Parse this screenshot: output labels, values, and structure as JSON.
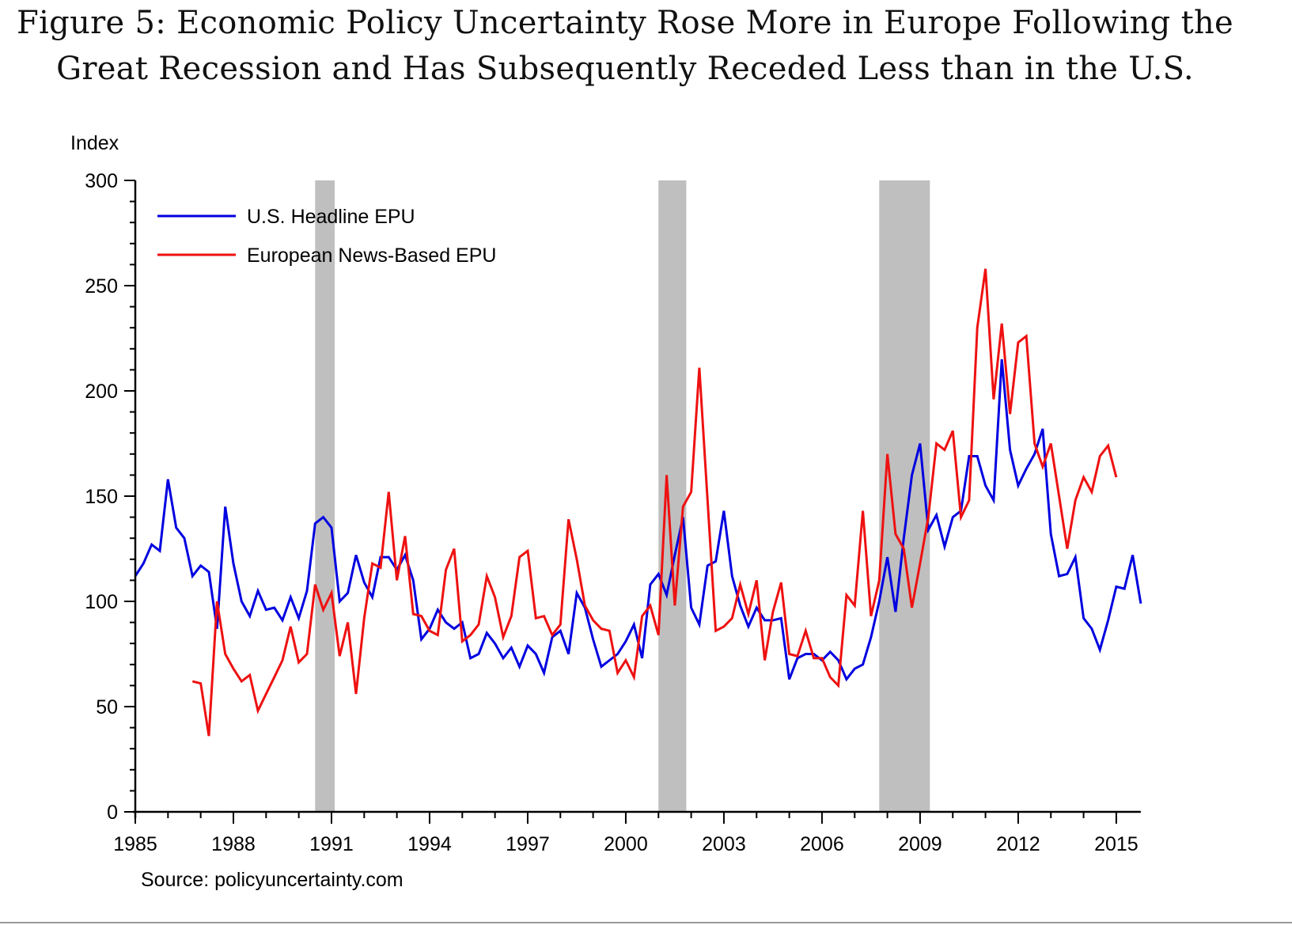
{
  "title": {
    "line1": "Figure 5: Economic Policy Uncertainty Rose More in Europe Following the",
    "line2": "Great Recession and Has Subsequently Receded Less than in the U.S."
  },
  "source": "Source: policyuncertainty.com",
  "chart_data": {
    "type": "line",
    "title": "Economic Policy Uncertainty Rose More in Europe Following the Great Recession and Has Subsequently Receded Less than in the U.S.",
    "ylabel": "Index",
    "xlabel": "",
    "ylim": [
      0,
      300
    ],
    "xlim": [
      1985,
      2015.75
    ],
    "yticks": [
      0,
      50,
      100,
      150,
      200,
      250,
      300
    ],
    "xticks": [
      "1985",
      "1988",
      "1991",
      "1994",
      "1997",
      "2000",
      "2003",
      "2006",
      "2009",
      "2012",
      "2015"
    ],
    "grid": false,
    "legend": "top-left",
    "shaded_regions": [
      {
        "label": "recession",
        "start": 1990.5,
        "end": 1991.1
      },
      {
        "label": "recession",
        "start": 2001.0,
        "end": 2001.85
      },
      {
        "label": "recession",
        "start": 2007.75,
        "end": 2009.3
      }
    ],
    "colors": {
      "us": "#0000e0",
      "eu": "#ee1111",
      "recession": "#c0bfbf"
    },
    "series": [
      {
        "name": "U.S. Headline EPU",
        "key": "us",
        "start": 1985.0,
        "step": 0.25,
        "values": [
          112,
          118,
          127,
          124,
          158,
          135,
          130,
          112,
          117,
          114,
          87,
          145,
          118,
          100,
          93,
          105,
          96,
          97,
          91,
          102,
          92,
          105,
          137,
          140,
          135,
          100,
          104,
          122,
          109,
          102,
          121,
          121,
          115,
          122,
          110,
          82,
          87,
          96,
          90,
          87,
          90,
          73,
          75,
          85,
          80,
          73,
          78,
          69,
          79,
          75,
          66,
          83,
          86,
          75,
          104,
          97,
          82,
          69,
          72,
          75,
          81,
          89,
          73,
          108,
          113,
          103,
          122,
          140,
          97,
          89,
          117,
          119,
          143,
          112,
          98,
          88,
          97,
          91,
          91,
          92,
          63,
          73,
          75,
          75,
          72,
          76,
          72,
          63,
          68,
          70,
          83,
          100,
          121,
          95,
          130,
          160,
          175,
          134,
          141,
          126,
          140,
          143,
          169,
          169,
          155,
          148,
          215,
          172,
          155,
          163,
          170,
          182,
          132,
          112,
          113,
          121,
          92,
          87,
          77,
          91,
          107,
          106,
          122,
          99
        ]
      },
      {
        "name": "European News-Based EPU",
        "key": "eu",
        "start": 1986.75,
        "step": 0.25,
        "values": [
          62,
          61,
          36,
          100,
          75,
          68,
          62,
          65,
          48,
          56,
          64,
          72,
          88,
          71,
          75,
          108,
          96,
          104,
          74,
          90,
          56,
          92,
          118,
          116,
          152,
          110,
          131,
          94,
          93,
          86,
          84,
          115,
          125,
          81,
          84,
          89,
          112,
          102,
          83,
          93,
          121,
          124,
          92,
          93,
          84,
          89,
          139,
          120,
          98,
          91,
          87,
          86,
          66,
          72,
          64,
          93,
          98,
          84,
          160,
          98,
          145,
          152,
          211,
          148,
          86,
          88,
          92,
          108,
          94,
          110,
          72,
          95,
          109,
          75,
          74,
          86,
          73,
          73,
          64,
          60,
          103,
          98,
          143,
          93,
          110,
          170,
          132,
          125,
          97,
          118,
          140,
          175,
          172,
          181,
          140,
          148,
          230,
          258,
          196,
          232,
          189,
          223,
          226,
          175,
          164,
          175,
          150,
          125,
          148,
          159,
          152,
          169,
          174,
          159
        ]
      }
    ]
  }
}
